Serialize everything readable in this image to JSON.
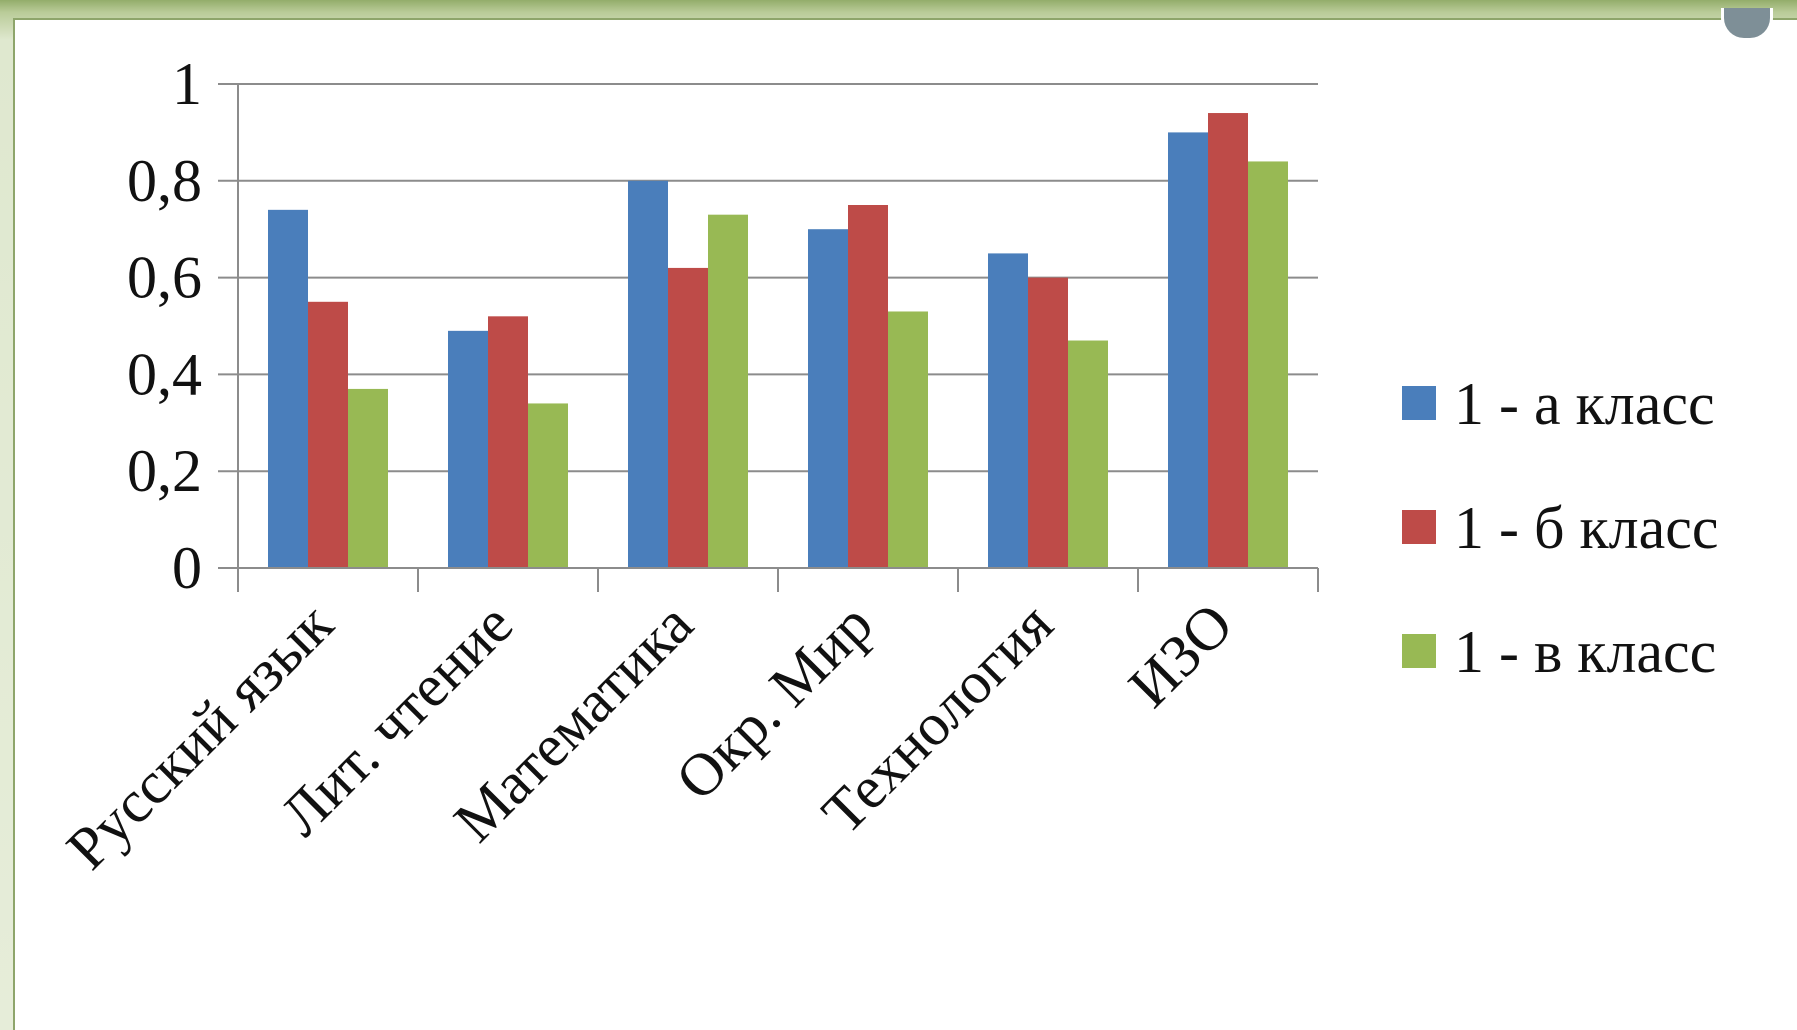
{
  "chart_data": {
    "type": "bar",
    "title": "",
    "xlabel": "",
    "ylabel": "",
    "ylim": [
      0,
      1
    ],
    "yticks": [
      "0",
      "0,2",
      "0,4",
      "0,6",
      "0,8",
      "1"
    ],
    "categories": [
      "Русский язык",
      "Лит. чтение",
      "Математика",
      "Окр. Мир",
      "Технология",
      "ИЗО"
    ],
    "series": [
      {
        "name": "1 - а класс",
        "color": "#4a7ebb",
        "values": [
          0.74,
          0.49,
          0.8,
          0.7,
          0.65,
          0.9
        ]
      },
      {
        "name": "1 - б класс",
        "color": "#be4b48",
        "values": [
          0.55,
          0.52,
          0.62,
          0.75,
          0.6,
          0.94
        ]
      },
      {
        "name": "1 - в класс",
        "color": "#98b954",
        "values": [
          0.37,
          0.34,
          0.73,
          0.53,
          0.47,
          0.84
        ]
      }
    ],
    "grid": true,
    "legend": "right"
  }
}
